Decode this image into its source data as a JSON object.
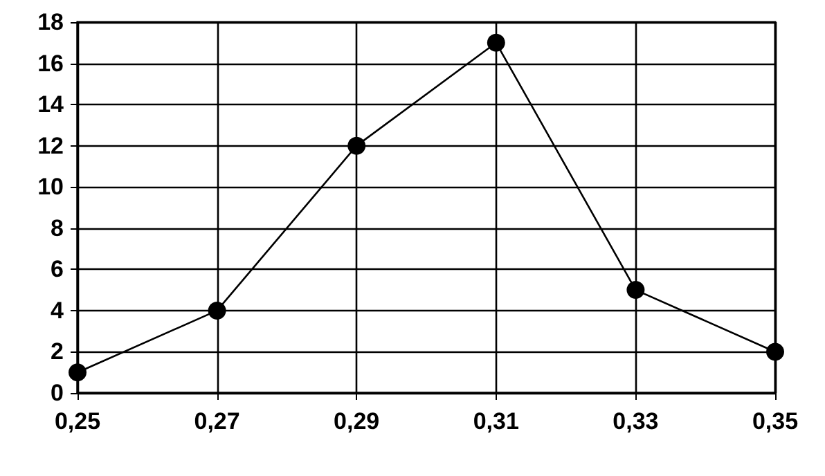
{
  "chart_data": {
    "type": "line",
    "x": [
      0.25,
      0.27,
      0.29,
      0.31,
      0.33,
      0.35
    ],
    "series": [
      {
        "color": "#000000",
        "values": [
          1,
          4,
          12,
          17,
          5,
          2
        ]
      }
    ],
    "xlim": [
      0.25,
      0.35
    ],
    "xticks": [
      {
        "value": 0.25,
        "label": "0,25"
      },
      {
        "value": 0.27,
        "label": "0,27"
      },
      {
        "value": 0.29,
        "label": "0,29"
      },
      {
        "value": 0.31,
        "label": "0,31"
      },
      {
        "value": 0.33,
        "label": "0,33"
      },
      {
        "value": 0.35,
        "label": "0,35"
      }
    ],
    "ylim": [
      0,
      18
    ],
    "yticks": [
      0,
      2,
      4,
      6,
      8,
      10,
      12,
      14,
      16,
      18
    ],
    "grid": true,
    "marker": "circle",
    "line_style": "solid"
  }
}
